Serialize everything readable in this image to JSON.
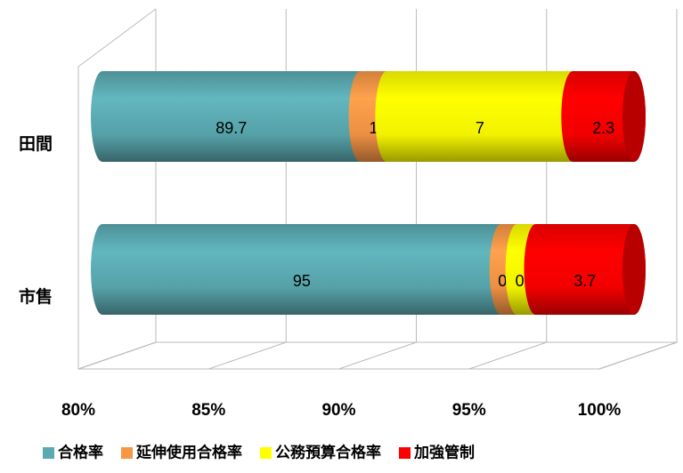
{
  "chart_data": {
    "type": "stacked-bar-horizontal-3d",
    "categories": [
      "田間",
      "市售"
    ],
    "series": [
      {
        "name": "合格率",
        "color": "#5ba9b1",
        "values": [
          89.7,
          95
        ]
      },
      {
        "name": "延伸使用合格率",
        "color": "#f79646",
        "values": [
          1,
          0.6
        ]
      },
      {
        "name": "公務預算合格率",
        "color": "#ffff00",
        "values": [
          7,
          0.7
        ]
      },
      {
        "name": "加強管制",
        "color": "#ff0000",
        "values": [
          2.3,
          3.7
        ]
      }
    ],
    "xlim": [
      80,
      100
    ],
    "xticks": [
      {
        "value": 80,
        "label": "80%"
      },
      {
        "value": 85,
        "label": "85%"
      },
      {
        "value": 90,
        "label": "90%"
      },
      {
        "value": 95,
        "label": "95%"
      },
      {
        "value": 100,
        "label": "100%"
      }
    ],
    "grid": true,
    "legend": "bottom"
  }
}
